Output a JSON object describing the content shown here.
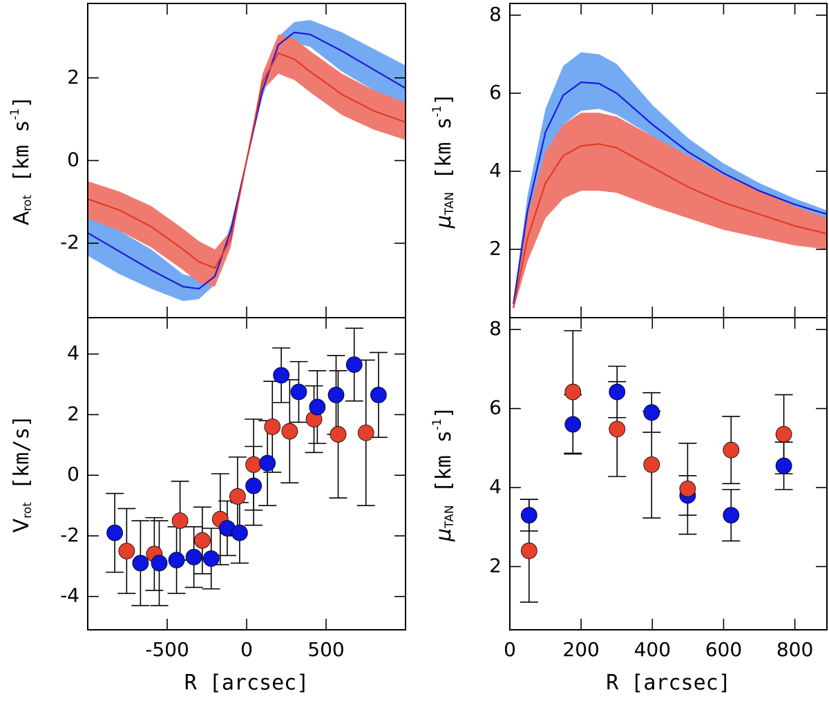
{
  "chart_data": [
    {
      "type": "line",
      "xlim": [
        -1000,
        1000
      ],
      "xticks": [
        -500,
        0,
        500
      ],
      "ylim": [
        -3.8,
        3.8
      ],
      "yticks": [
        -2,
        0,
        2
      ],
      "ylabel": {
        "text": "A",
        "sub": "rot",
        "unit": " [km s",
        "sup": "-1",
        "end": "]"
      },
      "x": [
        -1000,
        -800,
        -600,
        -400,
        -300,
        -200,
        -100,
        0,
        100,
        200,
        300,
        400,
        600,
        800,
        1000
      ],
      "series": [
        {
          "color": "#1a1adb",
          "band_color": "#74aaf2",
          "values": [
            -1.75,
            -2.2,
            -2.65,
            -3.05,
            -3.1,
            -2.8,
            -1.7,
            0,
            1.7,
            2.8,
            3.1,
            3.05,
            2.65,
            2.2,
            1.75
          ],
          "lower": [
            -2.3,
            -2.75,
            -3.1,
            -3.4,
            -3.35,
            -3.0,
            -1.85,
            0,
            1.55,
            2.6,
            2.85,
            2.75,
            2.15,
            1.7,
            1.3
          ],
          "upper": [
            -1.3,
            -1.7,
            -2.15,
            -2.75,
            -2.85,
            -2.6,
            -1.55,
            0,
            1.85,
            3.0,
            3.35,
            3.4,
            3.1,
            2.7,
            2.3
          ]
        },
        {
          "color": "#e23a26",
          "band_color": "#ef7b70",
          "values": [
            -0.93,
            -1.2,
            -1.6,
            -2.15,
            -2.45,
            -2.6,
            -1.9,
            0,
            1.9,
            2.6,
            2.45,
            2.15,
            1.6,
            1.2,
            0.93
          ],
          "lower": [
            -1.4,
            -1.7,
            -2.1,
            -2.65,
            -2.95,
            -3.05,
            -2.1,
            0,
            1.7,
            2.1,
            1.95,
            1.65,
            1.1,
            0.75,
            0.5
          ],
          "upper": [
            -0.5,
            -0.75,
            -1.1,
            -1.65,
            -1.95,
            -2.15,
            -1.7,
            0,
            2.1,
            3.05,
            2.95,
            2.65,
            2.1,
            1.7,
            1.4
          ]
        }
      ]
    },
    {
      "type": "line",
      "xlim": [
        0,
        890
      ],
      "xticks": [
        0,
        200,
        400,
        600,
        800
      ],
      "ylim": [
        0.25,
        8.3
      ],
      "yticks": [
        2,
        4,
        6,
        8
      ],
      "ylabel": {
        "text": "μ",
        "sub": "TAN",
        "unit": " [km s",
        "sup": "-1",
        "end": "]"
      },
      "x": [
        10,
        50,
        100,
        150,
        200,
        250,
        300,
        400,
        500,
        600,
        700,
        800,
        890
      ],
      "series": [
        {
          "color": "#1a1adb",
          "band_color": "#74aaf2",
          "values": [
            0.6,
            3.0,
            5.0,
            5.95,
            6.28,
            6.25,
            6.0,
            5.2,
            4.5,
            3.95,
            3.5,
            3.15,
            2.9
          ],
          "lower": [
            0.55,
            2.7,
            4.4,
            5.2,
            5.55,
            5.6,
            5.45,
            4.9,
            4.3,
            3.8,
            3.4,
            3.05,
            2.8
          ],
          "upper": [
            0.65,
            3.4,
            5.6,
            6.7,
            7.05,
            7.0,
            6.75,
            5.7,
            4.85,
            4.2,
            3.7,
            3.3,
            3.0
          ]
        },
        {
          "color": "#e23a26",
          "band_color": "#ef7b70",
          "values": [
            0.5,
            2.3,
            3.7,
            4.4,
            4.65,
            4.7,
            4.6,
            4.1,
            3.6,
            3.2,
            2.9,
            2.6,
            2.4
          ],
          "lower": [
            0.45,
            1.7,
            2.8,
            3.3,
            3.5,
            3.5,
            3.45,
            3.1,
            2.8,
            2.5,
            2.3,
            2.1,
            2.0
          ],
          "upper": [
            0.55,
            2.9,
            4.5,
            5.2,
            5.5,
            5.5,
            5.4,
            4.9,
            4.4,
            3.9,
            3.5,
            3.1,
            2.8
          ]
        }
      ]
    },
    {
      "type": "scatter",
      "xlim": [
        -1000,
        1000
      ],
      "xticks": [
        -500,
        0,
        500
      ],
      "ylim": [
        -5.1,
        5.2
      ],
      "yticks": [
        -4,
        -2,
        0,
        2,
        4
      ],
      "xlabel": "R [arcsec]",
      "ylabel": {
        "text": "V",
        "sub": "rot",
        "unit": " [km/s]"
      },
      "series": [
        {
          "color": "#e5402b",
          "x": [
            -755,
            -581,
            -419,
            -279,
            -166,
            -57,
            44,
            162,
            271,
            424,
            576,
            751
          ],
          "values": [
            -2.5,
            -2.6,
            -1.5,
            -2.15,
            -1.45,
            -0.7,
            0.35,
            1.6,
            1.45,
            1.85,
            1.35,
            1.4
          ],
          "errors": [
            1.4,
            1.2,
            1.3,
            1.1,
            1.5,
            1.3,
            1.5,
            1.5,
            1.7,
            1.1,
            2.1,
            2.4
          ]
        },
        {
          "color": "#0c16de",
          "x": [
            -830,
            -668,
            -550,
            -441,
            -332,
            -223,
            -122,
            -44,
            44,
            131,
            218,
            328,
            445,
            563,
            677,
            830
          ],
          "values": [
            -1.9,
            -2.9,
            -2.9,
            -2.8,
            -2.7,
            -2.75,
            -1.75,
            -1.9,
            -0.35,
            0.4,
            3.3,
            2.75,
            2.25,
            2.65,
            3.65,
            2.65
          ],
          "errors": [
            1.3,
            1.4,
            1.4,
            1.1,
            1.0,
            1.0,
            0.9,
            1.0,
            1.3,
            1.4,
            0.9,
            1.0,
            1.2,
            1.3,
            1.2,
            1.4
          ]
        }
      ]
    },
    {
      "type": "scatter",
      "xlim": [
        0,
        890
      ],
      "xticks": [
        0,
        200,
        400,
        600,
        800
      ],
      "ylim": [
        0.4,
        8.3
      ],
      "yticks": [
        2,
        4,
        6,
        8
      ],
      "xlabel": "R [arcsec]",
      "ylabel": {
        "text": "μ",
        "sub": "TAN",
        "unit": " [km s",
        "sup": "-1",
        "end": "]"
      },
      "series": [
        {
          "color": "#0c16de",
          "x": [
            54,
            177,
            301,
            398,
            499,
            621,
            769
          ],
          "values": [
            3.3,
            5.6,
            6.42,
            5.9,
            3.8,
            3.3,
            4.55
          ],
          "errors": [
            0.4,
            0.75,
            0.65,
            0.5,
            0.5,
            0.65,
            0.6
          ]
        },
        {
          "color": "#e5402b",
          "x": [
            54,
            177,
            301,
            398,
            499,
            621,
            769
          ],
          "values": [
            2.4,
            6.42,
            5.48,
            4.58,
            3.97,
            4.95,
            5.35
          ],
          "errors": [
            1.3,
            1.55,
            1.2,
            1.35,
            1.15,
            0.85,
            1.0
          ]
        }
      ]
    }
  ]
}
